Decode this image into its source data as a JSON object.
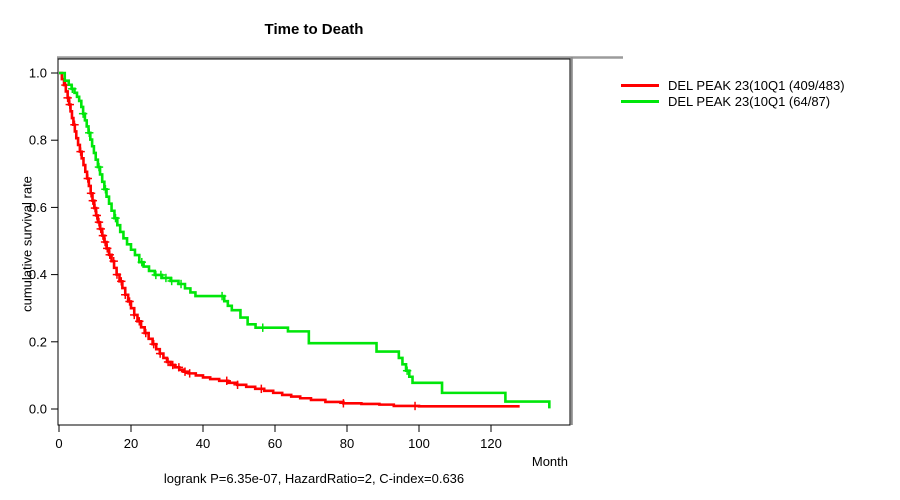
{
  "chart_data": {
    "type": "line",
    "subtype": "kaplan-meier-step-curve",
    "title": "Time to Death",
    "xlabel": "Month",
    "ylabel": "cumulative survival rate",
    "annotation": "logrank P=6.35e-07, HazardRatio=2, C-index=0.636",
    "xlim": [
      0,
      137
    ],
    "ylim": [
      0,
      1
    ],
    "grid": false,
    "legend_position": "right",
    "x_tick_values": [
      0,
      20,
      40,
      60,
      80,
      100,
      120
    ],
    "x_tick_labels": [
      "0",
      "20",
      "40",
      "60",
      "80",
      "100",
      "120"
    ],
    "y_tick_values": [
      0.0,
      0.2,
      0.4,
      0.6,
      0.8,
      1.0
    ],
    "y_tick_labels": [
      "0.0",
      "0.2",
      "0.4",
      "0.6",
      "0.8",
      "1.0"
    ],
    "series": [
      {
        "name": "DEL PEAK 23(10Q1 (409/483)",
        "color": "#ff0000",
        "n_total": 483,
        "n_events": 409,
        "steps": [
          [
            0,
            1.0
          ],
          [
            0.8,
            0.982
          ],
          [
            1.4,
            0.964
          ],
          [
            1.9,
            0.945
          ],
          [
            2.4,
            0.926
          ],
          [
            2.8,
            0.906
          ],
          [
            3.2,
            0.886
          ],
          [
            3.6,
            0.866
          ],
          [
            4.0,
            0.846
          ],
          [
            4.4,
            0.826
          ],
          [
            4.8,
            0.806
          ],
          [
            5.3,
            0.786
          ],
          [
            5.8,
            0.766
          ],
          [
            6.3,
            0.746
          ],
          [
            6.8,
            0.726
          ],
          [
            7.3,
            0.706
          ],
          [
            7.8,
            0.686
          ],
          [
            8.3,
            0.664
          ],
          [
            8.8,
            0.642
          ],
          [
            9.3,
            0.62
          ],
          [
            9.8,
            0.598
          ],
          [
            10.3,
            0.576
          ],
          [
            10.8,
            0.556
          ],
          [
            11.4,
            0.536
          ],
          [
            12.0,
            0.516
          ],
          [
            12.6,
            0.497
          ],
          [
            13.2,
            0.478
          ],
          [
            13.9,
            0.459
          ],
          [
            14.6,
            0.44
          ],
          [
            15.3,
            0.42
          ],
          [
            16.0,
            0.4
          ],
          [
            16.8,
            0.38
          ],
          [
            17.6,
            0.36
          ],
          [
            18.4,
            0.34
          ],
          [
            19.2,
            0.32
          ],
          [
            20.0,
            0.3
          ],
          [
            20.9,
            0.28
          ],
          [
            21.8,
            0.261
          ],
          [
            22.8,
            0.243
          ],
          [
            23.8,
            0.226
          ],
          [
            24.9,
            0.209
          ],
          [
            26.0,
            0.193
          ],
          [
            27.0,
            0.178
          ],
          [
            28.0,
            0.165
          ],
          [
            29.0,
            0.152
          ],
          [
            30.0,
            0.14
          ],
          [
            31.0,
            0.131
          ],
          [
            32.2,
            0.124
          ],
          [
            33.4,
            0.117
          ],
          [
            34.6,
            0.111
          ],
          [
            36.0,
            0.106
          ],
          [
            38.0,
            0.1
          ],
          [
            40.0,
            0.094
          ],
          [
            42.0,
            0.089
          ],
          [
            44.5,
            0.084
          ],
          [
            47.0,
            0.078
          ],
          [
            49.5,
            0.072
          ],
          [
            52.0,
            0.066
          ],
          [
            54.5,
            0.06
          ],
          [
            57.0,
            0.054
          ],
          [
            59.5,
            0.048
          ],
          [
            62.0,
            0.042
          ],
          [
            64.5,
            0.037
          ],
          [
            67.0,
            0.032
          ],
          [
            70.0,
            0.027
          ],
          [
            74.0,
            0.021
          ],
          [
            79.0,
            0.017
          ],
          [
            84.0,
            0.015
          ],
          [
            89.0,
            0.013
          ],
          [
            93.0,
            0.009
          ],
          [
            100.0,
            0.008
          ],
          [
            127.6,
            0.004
          ]
        ],
        "censor_months": [
          1.8,
          2.4,
          3.0,
          4.3,
          6.0,
          8.0,
          8.9,
          9.4,
          10.0,
          10.5,
          11.1,
          11.6,
          12.2,
          12.8,
          13.4,
          14.1,
          15.2,
          16.1,
          17.3,
          18.4,
          19.6,
          20.9,
          22.3,
          24.1,
          26.3,
          28.1,
          30.3,
          31.6,
          33.3,
          35.0,
          36.3,
          46.6,
          49.6,
          56.2,
          79.0,
          98.9
        ]
      },
      {
        "name": "DEL PEAK 23(10Q1 (64/87)",
        "color": "#00e60a",
        "n_total": 87,
        "n_events": 64,
        "steps": [
          [
            0,
            1.0
          ],
          [
            1.6,
            0.977
          ],
          [
            2.7,
            0.965
          ],
          [
            3.5,
            0.953
          ],
          [
            4.3,
            0.941
          ],
          [
            5.0,
            0.929
          ],
          [
            5.6,
            0.917
          ],
          [
            6.2,
            0.899
          ],
          [
            6.7,
            0.879
          ],
          [
            7.2,
            0.859
          ],
          [
            7.7,
            0.841
          ],
          [
            8.2,
            0.822
          ],
          [
            8.7,
            0.802
          ],
          [
            9.2,
            0.782
          ],
          [
            9.7,
            0.762
          ],
          [
            10.2,
            0.742
          ],
          [
            10.8,
            0.72
          ],
          [
            11.4,
            0.698
          ],
          [
            12.0,
            0.676
          ],
          [
            12.6,
            0.654
          ],
          [
            13.2,
            0.632
          ],
          [
            13.9,
            0.611
          ],
          [
            14.6,
            0.59
          ],
          [
            15.4,
            0.568
          ],
          [
            16.2,
            0.547
          ],
          [
            17.0,
            0.527
          ],
          [
            17.9,
            0.508
          ],
          [
            18.9,
            0.49
          ],
          [
            20.0,
            0.474
          ],
          [
            21.1,
            0.458
          ],
          [
            22.3,
            0.437
          ],
          [
            23.5,
            0.424
          ],
          [
            25.0,
            0.411
          ],
          [
            26.6,
            0.399
          ],
          [
            28.6,
            0.39
          ],
          [
            31.0,
            0.381
          ],
          [
            33.2,
            0.372
          ],
          [
            35.0,
            0.359
          ],
          [
            36.5,
            0.347
          ],
          [
            37.9,
            0.336
          ],
          [
            45.9,
            0.321
          ],
          [
            46.9,
            0.307
          ],
          [
            48.0,
            0.294
          ],
          [
            50.4,
            0.272
          ],
          [
            52.4,
            0.252
          ],
          [
            54.6,
            0.242
          ],
          [
            63.6,
            0.231
          ],
          [
            69.4,
            0.196
          ],
          [
            88.2,
            0.171
          ],
          [
            94.4,
            0.152
          ],
          [
            95.4,
            0.133
          ],
          [
            96.4,
            0.114
          ],
          [
            97.3,
            0.096
          ],
          [
            98.2,
            0.078
          ],
          [
            106.4,
            0.048
          ],
          [
            124.0,
            0.022
          ],
          [
            136.2,
            0.002
          ]
        ],
        "censor_months": [
          3.7,
          6.7,
          8.4,
          11.1,
          12.9,
          15.7,
          23.0,
          26.9,
          28.3,
          29.7,
          31.3,
          33.9,
          45.3,
          56.6,
          96.7
        ]
      }
    ]
  }
}
